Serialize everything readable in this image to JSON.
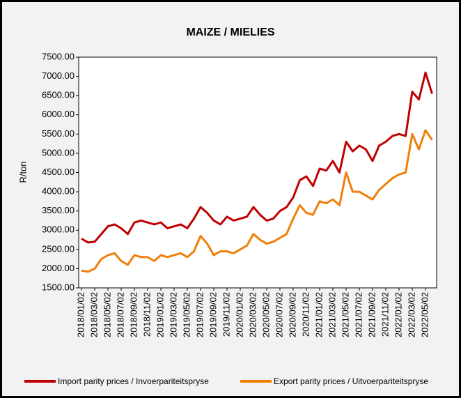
{
  "chart_data": {
    "type": "line",
    "title": "MAIZE / MIELIES",
    "y_label": "R/ton",
    "categories": [
      "2018/01/02",
      null,
      "2018/03/02",
      null,
      "2018/05/02",
      null,
      "2018/07/02",
      null,
      "2018/09/02",
      null,
      "2018/11/02",
      null,
      "2019/01/02",
      null,
      "2019/03/02",
      null,
      "2019/05/02",
      null,
      "2019/07/02",
      null,
      "2019/09/02",
      null,
      "2019/11/02",
      null,
      "2020/01/02",
      null,
      "2020/03/02",
      null,
      "2020/05/02",
      null,
      "2020/07/02",
      null,
      "2020/09/02",
      null,
      "2020/11/02",
      null,
      "2021/01/02",
      null,
      "2021/03/02",
      null,
      "2021/05/02",
      null,
      "2021/07/02",
      null,
      "2021/09/02",
      null,
      "2021/11/02",
      null,
      "2022/01/02",
      null,
      "2022/03/02",
      null,
      "2022/05/02",
      null
    ],
    "series": [
      {
        "name": "Import parity prices / Invoerpariteitspryse",
        "color": "#c00000",
        "values": [
          2780,
          2680,
          2700,
          2900,
          3100,
          3150,
          3050,
          2900,
          3200,
          3250,
          3200,
          3150,
          3200,
          3050,
          3100,
          3150,
          3050,
          3300,
          3600,
          3450,
          3250,
          3150,
          3350,
          3250,
          3300,
          3350,
          3600,
          3400,
          3250,
          3300,
          3500,
          3600,
          3850,
          4300,
          4400,
          4150,
          4600,
          4550,
          4800,
          4500,
          5300,
          5050,
          5200,
          5100,
          4800,
          5200,
          5300,
          5450,
          5500,
          5450,
          6600,
          6400,
          7100,
          6550
        ]
      },
      {
        "name": "Export parity prices / Uitvoerpariteitspryse",
        "color": "#f07f09",
        "values": [
          1950,
          1920,
          2000,
          2250,
          2350,
          2400,
          2200,
          2100,
          2350,
          2300,
          2300,
          2200,
          2350,
          2300,
          2350,
          2400,
          2300,
          2450,
          2850,
          2650,
          2350,
          2450,
          2450,
          2400,
          2500,
          2600,
          2900,
          2750,
          2650,
          2700,
          2800,
          2900,
          3300,
          3650,
          3450,
          3400,
          3750,
          3700,
          3800,
          3650,
          4500,
          4000,
          4000,
          3900,
          3800,
          4050,
          4200,
          4350,
          4450,
          4500,
          5500,
          5100,
          5600,
          5350
        ]
      }
    ],
    "ylim": [
      1500,
      7500
    ],
    "yticks": [
      {
        "value": 1500,
        "label": "1500.00"
      },
      {
        "value": 2000,
        "label": "2000.00"
      },
      {
        "value": 2500,
        "label": "2500.00"
      },
      {
        "value": 3000,
        "label": "3000.00"
      },
      {
        "value": 3500,
        "label": "3500.00"
      },
      {
        "value": 4000,
        "label": "4000.00"
      },
      {
        "value": 4500,
        "label": "4500.00"
      },
      {
        "value": 5000,
        "label": "5000.00"
      },
      {
        "value": 5500,
        "label": "5500.00"
      },
      {
        "value": 6000,
        "label": "6000.00"
      },
      {
        "value": 6500,
        "label": "6500.00"
      },
      {
        "value": 7000,
        "label": "7000.00"
      },
      {
        "value": 7500,
        "label": "7500.00"
      }
    ],
    "grid": false,
    "legend": "bottom"
  }
}
